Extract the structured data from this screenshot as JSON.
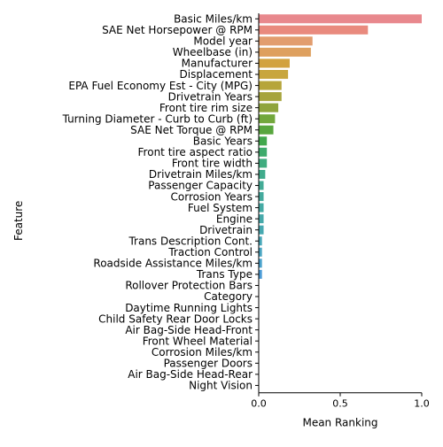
{
  "chart_data": {
    "type": "bar",
    "orientation": "horizontal",
    "xlabel": "Mean Ranking",
    "ylabel": "Feature",
    "xlim": [
      0,
      1.0
    ],
    "xticks": [
      "0.0",
      "0.5",
      "1.0"
    ],
    "grid": false,
    "legend": "none",
    "categories": [
      "Basic Miles/km",
      "SAE Net Horsepower @ RPM",
      "Model year",
      "Wheelbase (in)",
      "Manufacturer",
      "Displacement",
      "EPA Fuel Economy Est - City (MPG)",
      "Drivetrain Years",
      "Front tire rim size",
      "Turning Diameter - Curb to Curb (ft)",
      "SAE Net Torque @ RPM",
      "Basic Years",
      "Front tire aspect ratio",
      "Front tire width",
      "Drivetrain Miles/km",
      "Passenger Capacity",
      "Corrosion Years",
      "Fuel System",
      "Engine",
      "Drivetrain",
      "Trans Description Cont.",
      "Traction Control",
      "Roadside Assistance Miles/km",
      "Trans Type",
      "Rollover Protection Bars",
      "Category",
      "Daytime Running Lights",
      "Child Safety Rear Door Locks",
      "Air Bag-Side Head-Front",
      "Front Wheel Material",
      "Corrosion Miles/km",
      "Passenger Doors",
      "Air Bag-Side Head-Rear",
      "Night Vision"
    ],
    "values": [
      1.0,
      0.67,
      0.33,
      0.32,
      0.19,
      0.18,
      0.14,
      0.14,
      0.12,
      0.1,
      0.09,
      0.05,
      0.05,
      0.05,
      0.04,
      0.03,
      0.03,
      0.03,
      0.03,
      0.03,
      0.02,
      0.02,
      0.02,
      0.02,
      0.0,
      0.0,
      0.0,
      0.0,
      0.0,
      0.0,
      0.0,
      0.0,
      0.0,
      0.0
    ],
    "colors": [
      "#e8888d",
      "#e98a7e",
      "#e29d6e",
      "#dea05f",
      "#d2a23f",
      "#c8a63e",
      "#b6a53a",
      "#a6a43c",
      "#8fa43c",
      "#72a73c",
      "#58a63e",
      "#41a84c",
      "#3eab6c",
      "#3fac7f",
      "#41ab8c",
      "#43ab96",
      "#44aa9d",
      "#45aaa4",
      "#46a9aa",
      "#47a9b1",
      "#48a8b9",
      "#4aa6c2",
      "#4aa2cc",
      "#4d9dd7",
      "#5c96e0",
      "#7d8de8",
      "#9a84ec",
      "#b37bed",
      "#c673ea",
      "#d46de2",
      "#df69d4",
      "#e56bc3",
      "#e66fb1",
      "#e6779f"
    ]
  }
}
